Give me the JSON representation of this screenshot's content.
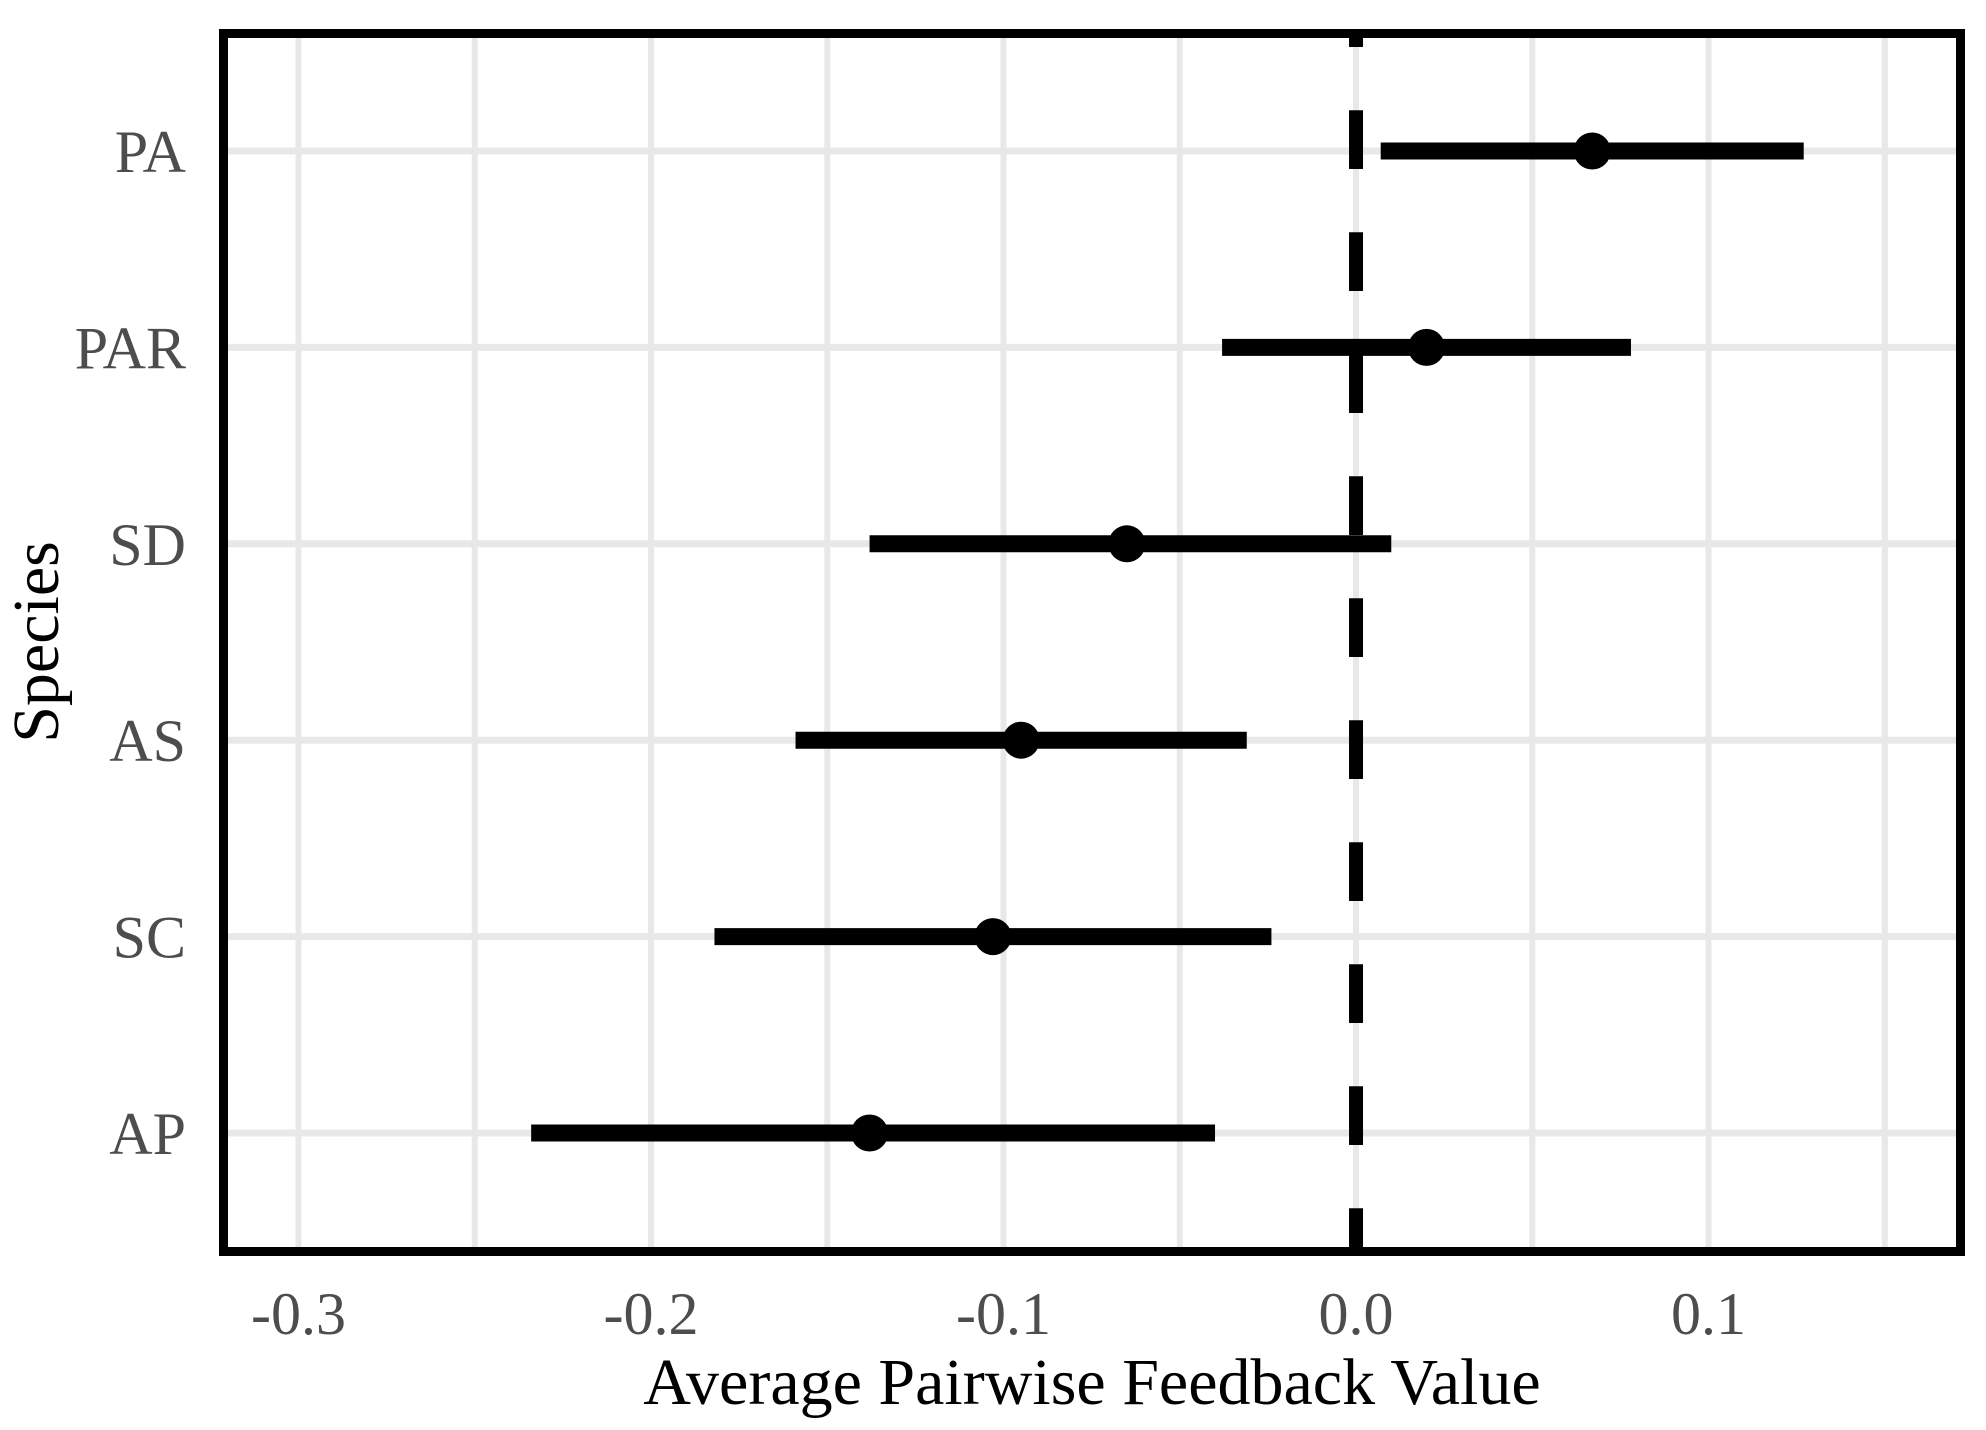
{
  "chart_data": {
    "type": "pointrange",
    "orientation": "horizontal",
    "title": "",
    "xlabel": "Average Pairwise Feedback Value",
    "ylabel": "Species",
    "categories": [
      "PA",
      "PAR",
      "SD",
      "AS",
      "SC",
      "AP"
    ],
    "points": [
      {
        "category": "PA",
        "estimate": 0.067,
        "lower": 0.007,
        "upper": 0.127
      },
      {
        "category": "PAR",
        "estimate": 0.02,
        "lower": -0.038,
        "upper": 0.078
      },
      {
        "category": "SD",
        "estimate": -0.065,
        "lower": -0.138,
        "upper": 0.01
      },
      {
        "category": "AS",
        "estimate": -0.095,
        "lower": -0.159,
        "upper": -0.031
      },
      {
        "category": "SC",
        "estimate": -0.103,
        "lower": -0.182,
        "upper": -0.024
      },
      {
        "category": "AP",
        "estimate": -0.138,
        "lower": -0.234,
        "upper": -0.04
      }
    ],
    "x_ticks": [
      {
        "value": -0.3,
        "label": "-0.3"
      },
      {
        "value": -0.2,
        "label": "-0.2"
      },
      {
        "value": -0.1,
        "label": "-0.1"
      },
      {
        "value": 0.0,
        "label": "0.0"
      },
      {
        "value": 0.1,
        "label": "0.1"
      }
    ],
    "xlim": [
      -0.32,
      0.1702
    ],
    "x_grid_step": 0.05,
    "grid": true,
    "legend": "none",
    "reference_line_x": 0.0,
    "reference_line_style": "dashed",
    "colors": {
      "point_and_line": "#000000",
      "reference_line": "#000000",
      "axis_text": "#4d4d4d",
      "axis_title": "#000000",
      "gridline": "#e8e8e8",
      "panel_border": "#000000",
      "background": "#ffffff"
    }
  }
}
